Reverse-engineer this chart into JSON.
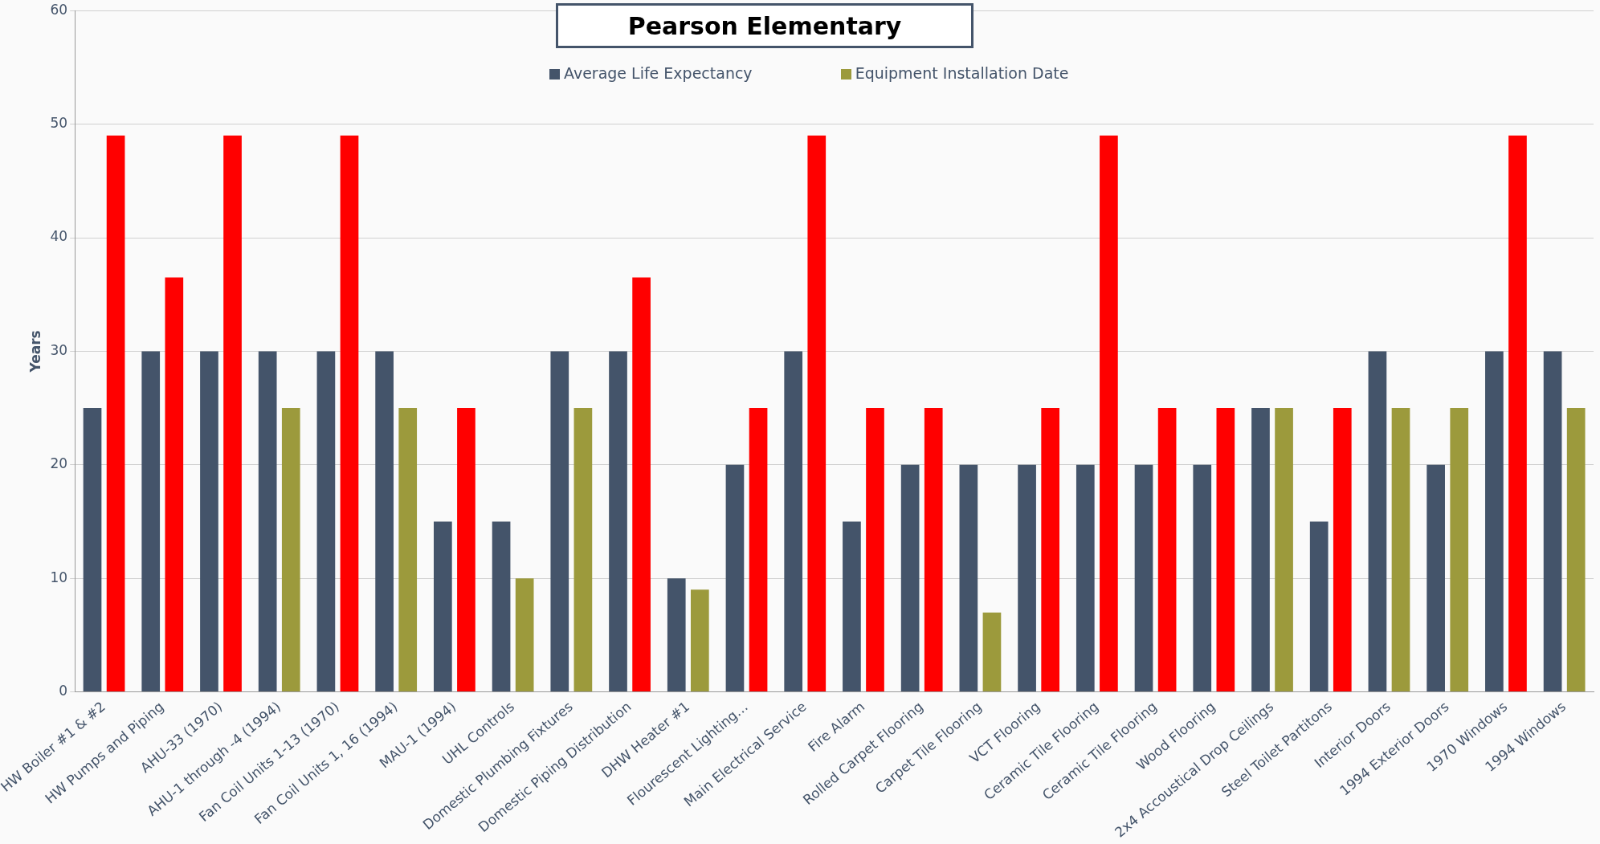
{
  "chart_data": {
    "type": "bar",
    "title": "Pearson Elementary",
    "ylabel": "Years",
    "categories": [
      "HW Boiler #1 & #2",
      "HW Pumps and Piping",
      "AHU-33 (1970)",
      "AHU-1 through -4 (1994)",
      "Fan Coil Units 1-13 (1970)",
      "Fan Coil Units 1, 16 (1994)",
      "MAU-1 (1994)",
      "UHL Controls",
      "Domestic Plumbing Fixtures",
      "Domestic Piping Distribution",
      "DHW Heater #1",
      "Flourescent Lighting…",
      "Main Electrical Service",
      "Fire Alarm",
      "Rolled Carpet Flooring",
      "Carpet Tile Flooring",
      "VCT Flooring",
      "Ceramic Tile Flooring",
      "Ceramic Tile Flooring",
      "Wood Flooring",
      "2x4 Accoustical Drop Ceilings",
      "Steel Toilet Partitons",
      "Interior Doors",
      "1994 Exterior Doors",
      "1970 Windows",
      "1994 Windows"
    ],
    "series": [
      {
        "name": "Average Life Expectancy",
        "color": "#44546a",
        "values": [
          25,
          30,
          30,
          30,
          30,
          30,
          15,
          15,
          30,
          30,
          10,
          20,
          30,
          15,
          20,
          20,
          20,
          20,
          20,
          20,
          25,
          15,
          30,
          20,
          30,
          30
        ]
      },
      {
        "name": "Equipment Installation Date",
        "color": "#9c9a3c",
        "colors": [
          "#ff0000",
          "#ff0000",
          "#ff0000",
          "#9c9a3c",
          "#ff0000",
          "#9c9a3c",
          "#ff0000",
          "#9c9a3c",
          "#9c9a3c",
          "#ff0000",
          "#9c9a3c",
          "#ff0000",
          "#ff0000",
          "#ff0000",
          "#ff0000",
          "#9c9a3c",
          "#ff0000",
          "#ff0000",
          "#ff0000",
          "#ff0000",
          "#9c9a3c",
          "#ff0000",
          "#9c9a3c",
          "#9c9a3c",
          "#ff0000",
          "#9c9a3c"
        ],
        "values": [
          49,
          36.5,
          49,
          25,
          49,
          25,
          25,
          10,
          25,
          36.5,
          9,
          25,
          49,
          25,
          25,
          7,
          25,
          49,
          25,
          25,
          25,
          25,
          25,
          25,
          49,
          25
        ]
      }
    ],
    "ylim": [
      0,
      60
    ],
    "yticks": [
      0,
      10,
      20,
      30,
      40,
      50,
      60
    ],
    "grid": "y",
    "legend": "top"
  }
}
